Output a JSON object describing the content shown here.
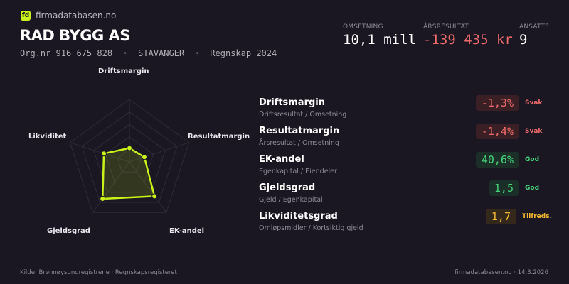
{
  "brand": {
    "logo_text": "fd",
    "name": "firmadatabasen.no"
  },
  "company": {
    "name": "RAD BYGG AS",
    "subtitle": "Org.nr 916 675 828  ·  STAVANGER  ·  Regnskap 2024"
  },
  "kpis": [
    {
      "label": "OMSETNING",
      "value": "10,1 mill"
    },
    {
      "label": "ÅRSRESULTAT",
      "value": "-139 435 kr"
    },
    {
      "label": "ANSATTE",
      "value": "9"
    }
  ],
  "chart_data": {
    "type": "radar",
    "axes": [
      "Driftsmargin",
      "Resultatmargin",
      "EK-andel",
      "Gjeldsgrad",
      "Likviditet"
    ],
    "values": [
      0.22,
      0.25,
      0.68,
      0.73,
      0.43
    ],
    "range": [
      0,
      1
    ],
    "grid_levels": 5,
    "color": "#c8f21a"
  },
  "metrics": [
    {
      "name": "Driftsmargin",
      "formula": "Driftsresultat / Omsetning",
      "value": "-1,3%",
      "status": "Svak",
      "tone": "bad"
    },
    {
      "name": "Resultatmargin",
      "formula": "Årsresultat / Omsetning",
      "value": "-1,4%",
      "status": "Svak",
      "tone": "bad"
    },
    {
      "name": "EK-andel",
      "formula": "Egenkapital / Eiendeler",
      "value": "40,6%",
      "status": "God",
      "tone": "good"
    },
    {
      "name": "Gjeldsgrad",
      "formula": "Gjeld / Egenkapital",
      "value": "1,5",
      "status": "God",
      "tone": "good"
    },
    {
      "name": "Likviditetsgrad",
      "formula": "Omløpsmidler / Kortsiktig gjeld",
      "value": "1,7",
      "status": "Tilfreds.",
      "tone": "ok"
    }
  ],
  "colors": {
    "background": "#1b1722",
    "accent": "#c8f21a",
    "bad": "#ef6b6b",
    "good": "#46d37a",
    "ok": "#f2b731"
  },
  "footer": {
    "source": "Kilde: Brønnøysundregistrene · Regnskapsregisteret",
    "site_date": "firmadatabasen.no · 14.3.2026"
  }
}
